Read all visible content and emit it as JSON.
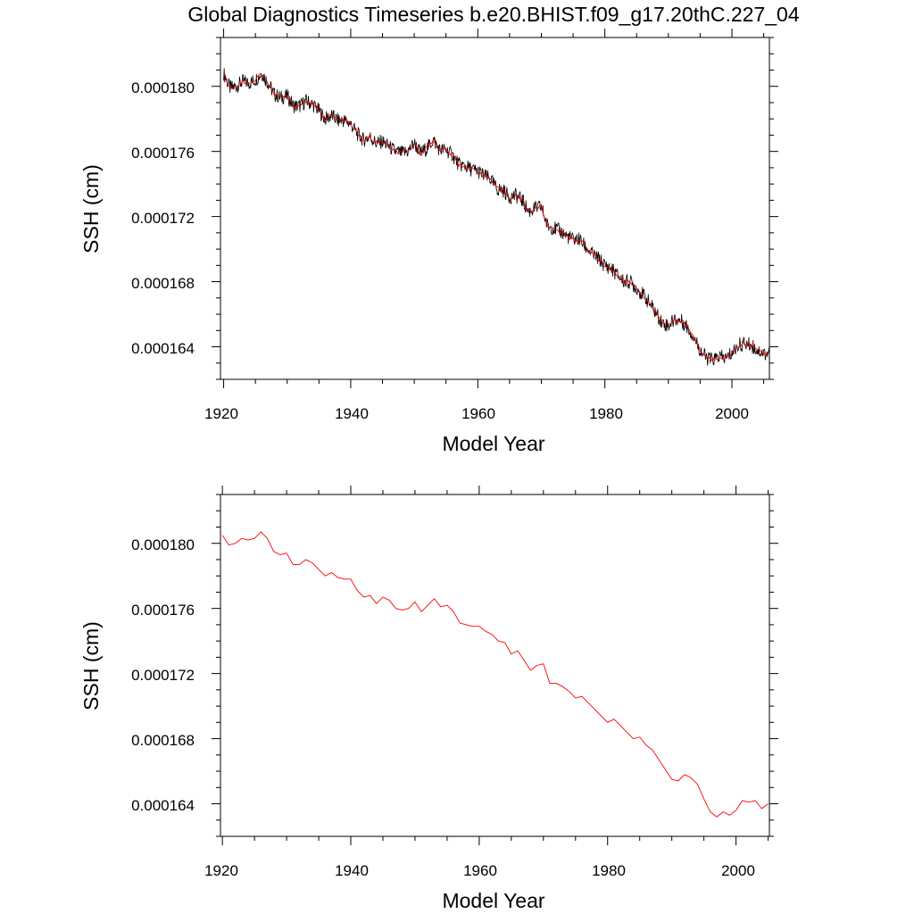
{
  "title": "Global Diagnostics Timeseries b.e20.BHIST.f09_g17.20thC.227_04",
  "colors": {
    "monthly": "#000000",
    "annual": "#ff0000",
    "axes": "#000000",
    "background": "#ffffff"
  },
  "panels": [
    {
      "xlabel": "Model Year",
      "ylabel": "SSH (cm)",
      "x_tick_labels": [
        "1920",
        "1940",
        "1960",
        "1980",
        "2000"
      ],
      "y_tick_labels": [
        "0.000164",
        "0.000168",
        "0.000172",
        "0.000176",
        "0.000180"
      ]
    },
    {
      "xlabel": "Model Year",
      "ylabel": "SSH (cm)",
      "x_tick_labels": [
        "1920",
        "1940",
        "1960",
        "1980",
        "2000"
      ],
      "y_tick_labels": [
        "0.000164",
        "0.000168",
        "0.000172",
        "0.000176",
        "0.000180"
      ]
    }
  ],
  "chart_data": [
    {
      "type": "line",
      "title": "Global Diagnostics Timeseries b.e20.BHIST.f09_g17.20thC.227_04",
      "xlabel": "Model Year",
      "ylabel": "SSH (cm)",
      "xlim": [
        1919.5,
        2005.9
      ],
      "ylim": [
        0.000162,
        0.000183
      ],
      "x_ticks": [
        1920,
        1940,
        1960,
        1980,
        2000
      ],
      "y_ticks": [
        0.000164,
        0.000168,
        0.000172,
        0.000176,
        0.00018
      ],
      "series": [
        {
          "role": "monthly",
          "color": "#000000",
          "start_year": 1920,
          "step": 0.0833333,
          "anchor_x": [
            1920,
            1921,
            1922,
            1923,
            1924,
            1925,
            1926,
            1927,
            1928,
            1929,
            1930,
            1931,
            1932,
            1933,
            1934,
            1935,
            1936,
            1937,
            1938,
            1939,
            1940,
            1941,
            1942,
            1943,
            1944,
            1945,
            1946,
            1947,
            1948,
            1949,
            1950,
            1951,
            1952,
            1953,
            1954,
            1955,
            1956,
            1957,
            1958,
            1959,
            1960,
            1961,
            1962,
            1963,
            1964,
            1965,
            1966,
            1967,
            1968,
            1969,
            1970,
            1971,
            1972,
            1973,
            1974,
            1975,
            1976,
            1977,
            1978,
            1979,
            1980,
            1981,
            1982,
            1983,
            1984,
            1985,
            1986,
            1987,
            1988,
            1989,
            1990,
            1991,
            1992,
            1993,
            1994,
            1995,
            1996,
            1997,
            1998,
            1999,
            2000,
            2001,
            2002,
            2003,
            2004,
            2005
          ],
          "anchor_y": [
            0.0001808,
            0.0001799,
            0.00018,
            0.0001803,
            0.0001802,
            0.0001804,
            0.0001808,
            0.0001802,
            0.0001795,
            0.0001793,
            0.0001794,
            0.0001788,
            0.0001788,
            0.0001791,
            0.0001789,
            0.0001785,
            0.000178,
            0.0001782,
            0.0001779,
            0.0001779,
            0.0001777,
            0.0001771,
            0.0001767,
            0.0001769,
            0.0001765,
            0.0001766,
            0.0001763,
            0.000176,
            0.0001759,
            0.000176,
            0.0001765,
            0.0001759,
            0.0001762,
            0.0001767,
            0.0001761,
            0.0001761,
            0.0001758,
            0.0001752,
            0.0001751,
            0.0001749,
            0.0001748,
            0.0001745,
            0.0001743,
            0.0001737,
            0.0001736,
            0.0001732,
            0.0001733,
            0.000173,
            0.0001723,
            0.0001725,
            0.0001726,
            0.0001714,
            0.0001713,
            0.0001711,
            0.0001708,
            0.0001706,
            0.0001706,
            0.0001701,
            0.0001697,
            0.0001694,
            0.000169,
            0.0001688,
            0.0001684,
            0.000168,
            0.000168,
            0.0001676,
            0.0001672,
            0.0001667,
            0.0001661,
            0.0001655,
            0.0001653,
            0.0001657,
            0.0001656,
            0.0001652,
            0.0001646,
            0.0001638,
            0.0001633,
            0.0001632,
            0.0001634,
            0.0001633,
            0.0001636,
            0.0001641,
            0.0001642,
            0.0001641,
            0.0001638,
            0.0001636
          ]
        },
        {
          "role": "running mean",
          "color": "#ff0000",
          "anchor_x": [
            1920,
            1921,
            1922,
            1923,
            1924,
            1925,
            1926,
            1927,
            1928,
            1929,
            1930,
            1931,
            1932,
            1933,
            1934,
            1935,
            1936,
            1937,
            1938,
            1939,
            1940,
            1941,
            1942,
            1943,
            1944,
            1945,
            1946,
            1947,
            1948,
            1949,
            1950,
            1951,
            1952,
            1953,
            1954,
            1955,
            1956,
            1957,
            1958,
            1959,
            1960,
            1961,
            1962,
            1963,
            1964,
            1965,
            1966,
            1967,
            1968,
            1969,
            1970,
            1971,
            1972,
            1973,
            1974,
            1975,
            1976,
            1977,
            1978,
            1979,
            1980,
            1981,
            1982,
            1983,
            1984,
            1985,
            1986,
            1987,
            1988,
            1989,
            1990,
            1991,
            1992,
            1993,
            1994,
            1995,
            1996,
            1997,
            1998,
            1999,
            2000,
            2001,
            2002,
            2003,
            2004,
            2005
          ],
          "anchor_y": [
            0.0001808,
            0.0001799,
            0.00018,
            0.0001803,
            0.0001802,
            0.0001804,
            0.0001808,
            0.0001802,
            0.0001795,
            0.0001793,
            0.0001794,
            0.0001788,
            0.0001788,
            0.0001791,
            0.0001789,
            0.0001785,
            0.000178,
            0.0001782,
            0.0001779,
            0.0001779,
            0.0001777,
            0.0001771,
            0.0001767,
            0.0001769,
            0.0001765,
            0.0001766,
            0.0001763,
            0.000176,
            0.0001759,
            0.000176,
            0.0001765,
            0.0001759,
            0.0001762,
            0.0001767,
            0.0001761,
            0.0001761,
            0.0001758,
            0.0001752,
            0.0001751,
            0.0001749,
            0.0001748,
            0.0001745,
            0.0001743,
            0.0001737,
            0.0001736,
            0.0001732,
            0.0001733,
            0.000173,
            0.0001723,
            0.0001725,
            0.0001726,
            0.0001714,
            0.0001713,
            0.0001711,
            0.0001708,
            0.0001706,
            0.0001706,
            0.0001701,
            0.0001697,
            0.0001694,
            0.000169,
            0.0001688,
            0.0001684,
            0.000168,
            0.000168,
            0.0001676,
            0.0001672,
            0.0001667,
            0.0001661,
            0.0001655,
            0.0001653,
            0.0001657,
            0.0001656,
            0.0001652,
            0.0001646,
            0.0001638,
            0.0001633,
            0.0001632,
            0.0001634,
            0.0001633,
            0.0001636,
            0.0001641,
            0.0001642,
            0.0001641,
            0.0001638,
            0.0001636
          ]
        }
      ]
    },
    {
      "type": "line",
      "xlabel": "Model Year",
      "ylabel": "SSH (cm)",
      "xlim": [
        1919.7,
        2005.2
      ],
      "ylim": [
        0.000162,
        0.000183
      ],
      "x_ticks": [
        1920,
        1940,
        1960,
        1980,
        2000
      ],
      "y_ticks": [
        0.000164,
        0.000168,
        0.000172,
        0.000176,
        0.00018
      ],
      "series": [
        {
          "role": "annual mean",
          "color": "#ff0000",
          "x": [
            1920,
            1921,
            1922,
            1923,
            1924,
            1925,
            1926,
            1927,
            1928,
            1929,
            1930,
            1931,
            1932,
            1933,
            1934,
            1935,
            1936,
            1937,
            1938,
            1939,
            1940,
            1941,
            1942,
            1943,
            1944,
            1945,
            1946,
            1947,
            1948,
            1949,
            1950,
            1951,
            1952,
            1953,
            1954,
            1955,
            1956,
            1957,
            1958,
            1959,
            1960,
            1961,
            1962,
            1963,
            1964,
            1965,
            1966,
            1967,
            1968,
            1969,
            1970,
            1971,
            1972,
            1973,
            1974,
            1975,
            1976,
            1977,
            1978,
            1979,
            1980,
            1981,
            1982,
            1983,
            1984,
            1985,
            1986,
            1987,
            1988,
            1989,
            1990,
            1991,
            1992,
            1993,
            1994,
            1995,
            1996,
            1997,
            1998,
            1999,
            2000,
            2001,
            2002,
            2003,
            2004,
            2005
          ],
          "y": [
            0.0001805,
            0.0001799,
            0.00018,
            0.0001803,
            0.0001802,
            0.0001803,
            0.0001807,
            0.0001803,
            0.0001795,
            0.0001793,
            0.0001794,
            0.0001787,
            0.0001787,
            0.000179,
            0.0001788,
            0.0001784,
            0.000178,
            0.0001782,
            0.0001779,
            0.0001778,
            0.0001778,
            0.0001771,
            0.0001767,
            0.0001768,
            0.0001763,
            0.0001767,
            0.0001765,
            0.000176,
            0.0001759,
            0.000176,
            0.0001764,
            0.0001758,
            0.0001762,
            0.0001766,
            0.0001761,
            0.0001762,
            0.0001758,
            0.0001751,
            0.000175,
            0.0001749,
            0.0001749,
            0.0001746,
            0.0001744,
            0.000174,
            0.0001739,
            0.0001732,
            0.0001734,
            0.0001728,
            0.0001722,
            0.0001725,
            0.0001726,
            0.0001714,
            0.0001714,
            0.0001712,
            0.0001709,
            0.0001705,
            0.0001706,
            0.0001702,
            0.0001698,
            0.0001694,
            0.000169,
            0.0001692,
            0.0001688,
            0.0001684,
            0.000168,
            0.0001681,
            0.0001676,
            0.0001673,
            0.0001667,
            0.0001661,
            0.0001655,
            0.0001654,
            0.0001658,
            0.0001656,
            0.0001652,
            0.0001643,
            0.0001635,
            0.0001632,
            0.0001635,
            0.0001633,
            0.0001636,
            0.0001642,
            0.0001641,
            0.0001642,
            0.0001637,
            0.000164
          ]
        }
      ]
    }
  ]
}
